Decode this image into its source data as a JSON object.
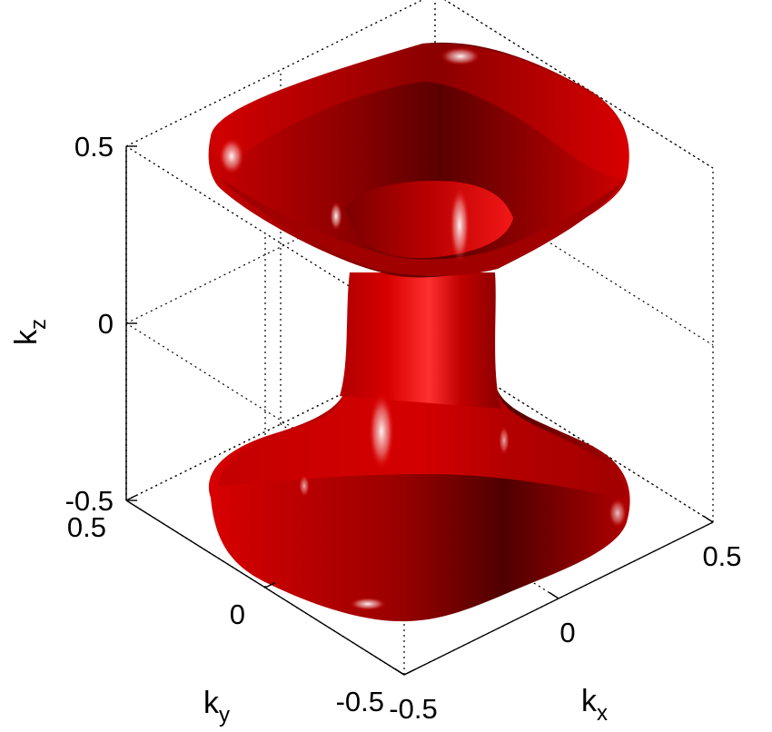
{
  "chart_data": {
    "type": "surface3d",
    "title": "",
    "xlabel": {
      "base": "k",
      "sub": "x"
    },
    "ylabel": {
      "base": "k",
      "sub": "y"
    },
    "zlabel": {
      "base": "k",
      "sub": "z"
    },
    "xlim": [
      -0.5,
      0.5
    ],
    "ylim": [
      -0.5,
      0.5
    ],
    "zlim": [
      -0.5,
      0.5
    ],
    "x_ticks": [
      -0.5,
      0,
      0.5
    ],
    "y_ticks": [
      -0.5,
      0,
      0.5
    ],
    "z_ticks": [
      -0.5,
      0,
      0.5
    ],
    "x_tick_labels": [
      "-0.5",
      "0",
      "0.5"
    ],
    "y_tick_labels": [
      "-0.5",
      "0",
      "0.5"
    ],
    "z_tick_labels": [
      "-0.5",
      "0",
      "0.5"
    ],
    "grid": true,
    "box": "dotted",
    "surface_color": "#cc0000",
    "surface_shadow_color": "#4a0000",
    "surface_description": "isosurface"
  }
}
